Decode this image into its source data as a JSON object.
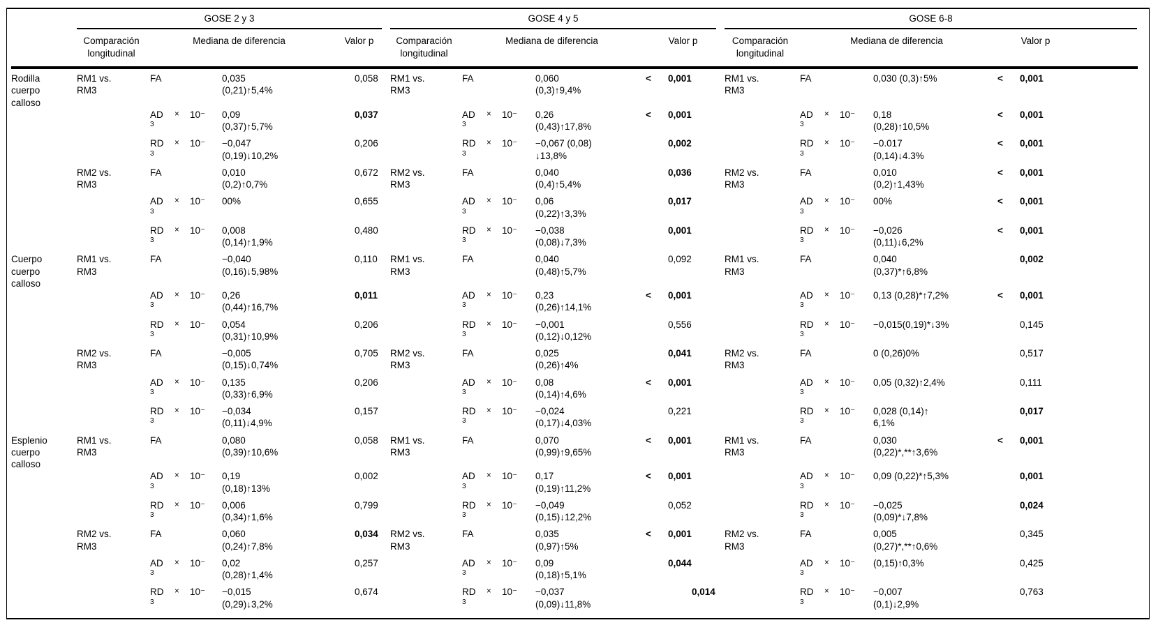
{
  "table": {
    "groups": [
      {
        "title": "GOSE 2 y 3"
      },
      {
        "title": "GOSE 4 y 5"
      },
      {
        "title": "GOSE 6-8"
      }
    ],
    "subheaders": {
      "comparison": "Comparación longitudinal",
      "median": "Mediana de diferencia",
      "pvalue": "Valor p"
    },
    "rows": [
      {
        "region": "Rodilla cuerpo calloso",
        "comp": "RM1 vs. RM3",
        "metric": "FA",
        "mult": "",
        "exp": "",
        "sup": "",
        "g23": {
          "v1": "0,035",
          "v2": "(0,21)↑5,4%",
          "lt": false,
          "p": "0,058",
          "b": false
        },
        "g45": {
          "v1": "0,060",
          "v2": "(0,3)↑9,4%",
          "lt": true,
          "p": "0,001",
          "b": true
        },
        "g68": {
          "v1": "0,030 (0,3)↑5%",
          "v2": "",
          "lt": true,
          "p": "0,001",
          "b": true
        }
      },
      {
        "region": "",
        "comp": "",
        "metric": "AD",
        "mult": "×",
        "exp": "10⁻",
        "sup": "3",
        "g23": {
          "v1": "0,09",
          "v2": "(0,37)↑5,7%",
          "lt": false,
          "p": "0,037",
          "b": true
        },
        "g45": {
          "v1": "0,26",
          "v2": "(0,43)↑17,8%",
          "lt": true,
          "p": "0,001",
          "b": true
        },
        "g68": {
          "v1": "0,18",
          "v2": "(0,28)↑10,5%",
          "lt": true,
          "p": "0,001",
          "b": true
        }
      },
      {
        "region": "",
        "comp": "",
        "metric": "RD",
        "mult": "×",
        "exp": "10⁻",
        "sup": "3",
        "g23": {
          "v1": "−0,047",
          "v2": "(0,19)↓10,2%",
          "lt": false,
          "p": "0,206",
          "b": false
        },
        "g45": {
          "v1": "−0,067 (0,08)",
          "v2": "↓13,8%",
          "lt": false,
          "p": "0,002",
          "b": true
        },
        "g68": {
          "v1": "−0.017",
          "v2": "(0,14)↓4.3%",
          "lt": true,
          "p": "0,001",
          "b": true
        }
      },
      {
        "region": "",
        "comp": "RM2 vs. RM3",
        "metric": "FA",
        "mult": "",
        "exp": "",
        "sup": "",
        "g23": {
          "v1": "0,010",
          "v2": "(0,2)↑0,7%",
          "lt": false,
          "p": "0,672",
          "b": false
        },
        "g45": {
          "v1": "0,040",
          "v2": "(0,4)↑5,4%",
          "lt": false,
          "p": "0,036",
          "b": true
        },
        "g68": {
          "v1": "0,010",
          "v2": "(0,2)↑1,43%",
          "lt": true,
          "p": "0,001",
          "b": true
        }
      },
      {
        "region": "",
        "comp": "",
        "metric": "AD",
        "mult": "×",
        "exp": "10⁻",
        "sup": "3",
        "g23": {
          "v1": "00%",
          "v2": "",
          "lt": false,
          "p": "0,655",
          "b": false
        },
        "g45": {
          "v1": "0,06",
          "v2": "(0,22)↑3,3%",
          "lt": false,
          "p": "0,017",
          "b": true
        },
        "g68": {
          "v1": "00%",
          "v2": "",
          "lt": true,
          "p": "0,001",
          "b": true
        }
      },
      {
        "region": "",
        "comp": "",
        "metric": "RD",
        "mult": "×",
        "exp": "10⁻",
        "sup": "3",
        "g23": {
          "v1": "0,008",
          "v2": "(0,14)↑1,9%",
          "lt": false,
          "p": "0,480",
          "b": false
        },
        "g45": {
          "v1": "−0,038",
          "v2": "(0,08)↓7,3%",
          "lt": false,
          "p": "0,001",
          "b": true
        },
        "g68": {
          "v1": "−0,026",
          "v2": "(0,11)↓6,2%",
          "lt": true,
          "p": "0,001",
          "b": true
        }
      },
      {
        "region": "Cuerpo cuerpo calloso",
        "comp": "RM1 vs. RM3",
        "metric": "FA",
        "mult": "",
        "exp": "",
        "sup": "",
        "g23": {
          "v1": "−0,040",
          "v2": "(0,16)↓5,98%",
          "lt": false,
          "p": "0,110",
          "b": false
        },
        "g45": {
          "v1": "0,040",
          "v2": "(0,48)↑5,7%",
          "lt": false,
          "p": "0,092",
          "b": false
        },
        "g68": {
          "v1": "0,040",
          "v2": "(0,37)*↑6,8%",
          "lt": false,
          "p": "0,002",
          "b": true
        }
      },
      {
        "region": "",
        "comp": "",
        "metric": "AD",
        "mult": "×",
        "exp": "10⁻",
        "sup": "3",
        "g23": {
          "v1": "0,26",
          "v2": "(0,44)↑16,7%",
          "lt": false,
          "p": "0,011",
          "b": true
        },
        "g45": {
          "v1": "0,23",
          "v2": "(0,26)↑14,1%",
          "lt": true,
          "p": "0,001",
          "b": true
        },
        "g68": {
          "v1": "0,13 (0,28)*↑7,2%",
          "v2": "",
          "lt": true,
          "p": "0,001",
          "b": true
        }
      },
      {
        "region": "",
        "comp": "",
        "metric": "RD",
        "mult": "×",
        "exp": "10⁻",
        "sup": "3",
        "g23": {
          "v1": "0,054",
          "v2": "(0,31)↑10,9%",
          "lt": false,
          "p": "0,206",
          "b": false
        },
        "g45": {
          "v1": "−0,001",
          "v2": "(0,12)↓0,12%",
          "lt": false,
          "p": "0,556",
          "b": false
        },
        "g68": {
          "v1": "−0,015(0,19)*↓3%",
          "v2": "",
          "lt": false,
          "p": "0,145",
          "b": false
        }
      },
      {
        "region": "",
        "comp": "RM2 vs. RM3",
        "metric": "FA",
        "mult": "",
        "exp": "",
        "sup": "",
        "g23": {
          "v1": "−0,005",
          "v2": "(0,15)↓0,74%",
          "lt": false,
          "p": "0,705",
          "b": false
        },
        "g45": {
          "v1": "0,025",
          "v2": "(0,26)↑4%",
          "lt": false,
          "p": "0,041",
          "b": true
        },
        "g68": {
          "v1": "0 (0,26)0%",
          "v2": "",
          "lt": false,
          "p": "0,517",
          "b": false
        }
      },
      {
        "region": "",
        "comp": "",
        "metric": "AD",
        "mult": "×",
        "exp": "10⁻",
        "sup": "3",
        "g23": {
          "v1": "0,135",
          "v2": "(0,33)↑6,9%",
          "lt": false,
          "p": "0,206",
          "b": false
        },
        "g45": {
          "v1": "0,08",
          "v2": "(0,14)↑4,6%",
          "lt": true,
          "p": "0,001",
          "b": true
        },
        "g68": {
          "v1": "0,05 (0,32)↑2,4%",
          "v2": "",
          "lt": false,
          "p": "0,111",
          "b": false
        }
      },
      {
        "region": "",
        "comp": "",
        "metric": "RD",
        "mult": "×",
        "exp": "10⁻",
        "sup": "3",
        "g23": {
          "v1": "−0,034",
          "v2": "(0,11)↓4,9%",
          "lt": false,
          "p": "0,157",
          "b": false
        },
        "g45": {
          "v1": "−0,024",
          "v2": "(0,17)↓4,03%",
          "lt": false,
          "p": "0,221",
          "b": false
        },
        "g68": {
          "v1": "0,028 (0,14)↑",
          "v2": "6,1%",
          "lt": false,
          "p": "0,017",
          "b": true
        }
      },
      {
        "region": "Esplenio cuerpo calloso",
        "comp": "RM1 vs. RM3",
        "metric": "FA",
        "mult": "",
        "exp": "",
        "sup": "",
        "g23": {
          "v1": "0,080",
          "v2": "(0,39)↑10,6%",
          "lt": false,
          "p": "0,058",
          "b": false
        },
        "g45": {
          "v1": "0,070",
          "v2": "(0,99)↑9,65%",
          "lt": true,
          "p": "0,001",
          "b": true
        },
        "g68": {
          "v1": "0,030",
          "v2": "(0,22)*,**↑3,6%",
          "lt": true,
          "p": "0,001",
          "b": true
        }
      },
      {
        "region": "",
        "comp": "",
        "metric": "AD",
        "mult": "×",
        "exp": "10⁻",
        "sup": "3",
        "g23": {
          "v1": "0,19",
          "v2": "(0,18)↑13%",
          "lt": false,
          "p": "0,002",
          "b": false
        },
        "g45": {
          "v1": "0,17",
          "v2": "(0,19)↑11,2%",
          "lt": true,
          "p": "0,001",
          "b": true
        },
        "g68": {
          "v1": "0,09 (0,22)*↑5,3%",
          "v2": "",
          "lt": false,
          "p": "0,001",
          "b": true
        }
      },
      {
        "region": "",
        "comp": "",
        "metric": "RD",
        "mult": "×",
        "exp": "10⁻",
        "sup": "3",
        "g23": {
          "v1": "0,006",
          "v2": "(0,34)↑1,6%",
          "lt": false,
          "p": "0,799",
          "b": false
        },
        "g45": {
          "v1": "−0,049",
          "v2": "(0,15)↓12,2%",
          "lt": false,
          "p": "0,052",
          "b": false
        },
        "g68": {
          "v1": "−0,025",
          "v2": "(0,09)*↓7,8%",
          "lt": false,
          "p": "0,024",
          "b": true
        }
      },
      {
        "region": "",
        "comp": "RM2 vs. RM3",
        "metric": "FA",
        "mult": "",
        "exp": "",
        "sup": "",
        "g23": {
          "v1": "0,060",
          "v2": "(0,24)↑7,8%",
          "lt": false,
          "p": "0,034",
          "b": true
        },
        "g45": {
          "v1": "0,035",
          "v2": "(0,97)↑5%",
          "lt": true,
          "p": "0,001",
          "b": true
        },
        "g68": {
          "v1": "0,005",
          "v2": "(0,27)*,**↑0,6%",
          "lt": false,
          "p": "0,345",
          "b": false
        }
      },
      {
        "region": "",
        "comp": "",
        "metric": "AD",
        "mult": "×",
        "exp": "10⁻",
        "sup": "3",
        "g23": {
          "v1": "0,02",
          "v2": "(0,28)↑1,4%",
          "lt": false,
          "p": "0,257",
          "b": false
        },
        "g45": {
          "v1": "0,09",
          "v2": "(0,18)↑5,1%",
          "lt": false,
          "p": "0,044",
          "b": true
        },
        "g68": {
          "v1": "(0,15)↑0,3%",
          "v2": "",
          "lt": false,
          "p": "0,425",
          "b": false
        }
      },
      {
        "region": "",
        "comp": "",
        "metric": "RD",
        "mult": "×",
        "exp": "10⁻",
        "sup": "3",
        "g23": {
          "v1": "−0,015",
          "v2": "(0,29)↓3,2%",
          "lt": false,
          "p": "0,674",
          "b": false
        },
        "g45": {
          "v1": "−0,037",
          "v2": "(0,09)↓11,8%",
          "lt": false,
          "p": "0,014",
          "b": true,
          "ind": true
        },
        "g68": {
          "v1": "−0,007",
          "v2": "(0,1)↓2,9%",
          "lt": false,
          "p": "0,763",
          "b": false
        }
      }
    ]
  }
}
